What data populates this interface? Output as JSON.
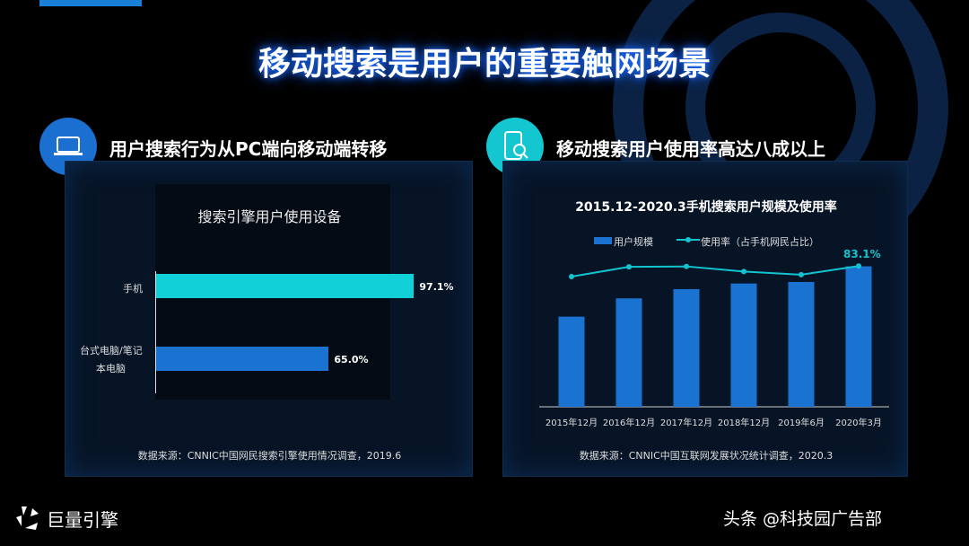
{
  "title": "移动搜索是用户的重要触网场景",
  "left": {
    "section_title": "用户搜索行为从PC端向移动端转移",
    "icon": "laptop-icon",
    "chart_data": {
      "type": "bar",
      "orientation": "horizontal",
      "title": "搜索引擎用户使用设备",
      "categories": [
        "手机",
        "台式电脑/笔记本电脑"
      ],
      "category_labels": [
        [
          "手机"
        ],
        [
          "台式电脑/笔记",
          "本电脑"
        ]
      ],
      "values": [
        97.1,
        65.0
      ],
      "value_labels": [
        "97.1%",
        "65.0%"
      ],
      "colors": [
        "#12d0d8",
        "#1a73d1"
      ],
      "xlim": [
        0,
        100
      ]
    },
    "source": "数据来源：CNNIC中国网民搜索引擎使用情况调查，2019.6"
  },
  "right": {
    "section_title": "移动搜索用户使用率高达八成以上",
    "icon": "phone-search-icon",
    "chart_data": {
      "type": "bar+line",
      "title": "2015.12-2020.3手机搜索用户规模及使用率",
      "categories": [
        "2015年12月",
        "2016年12月",
        "2017年12月",
        "2018年12月",
        "2019年6月",
        "2020年3月"
      ],
      "series": [
        {
          "name": "用户规模",
          "type": "bar",
          "values": [
            4.78,
            5.75,
            6.24,
            6.54,
            6.62,
            7.45
          ],
          "color": "#1a73d1"
        },
        {
          "name": "使用率（占手机网民占比）",
          "type": "line",
          "values": [
            77.1,
            82.7,
            82.9,
            80.0,
            78.2,
            83.1
          ],
          "color": "#12c4d0"
        }
      ],
      "annotation": "83.1%",
      "legend": "top"
    },
    "source": "数据来源：CNNIC中国互联网发展状况统计调查，2020.3"
  },
  "brand": "巨量引擎",
  "watermark": "头条 @科技园广告部"
}
